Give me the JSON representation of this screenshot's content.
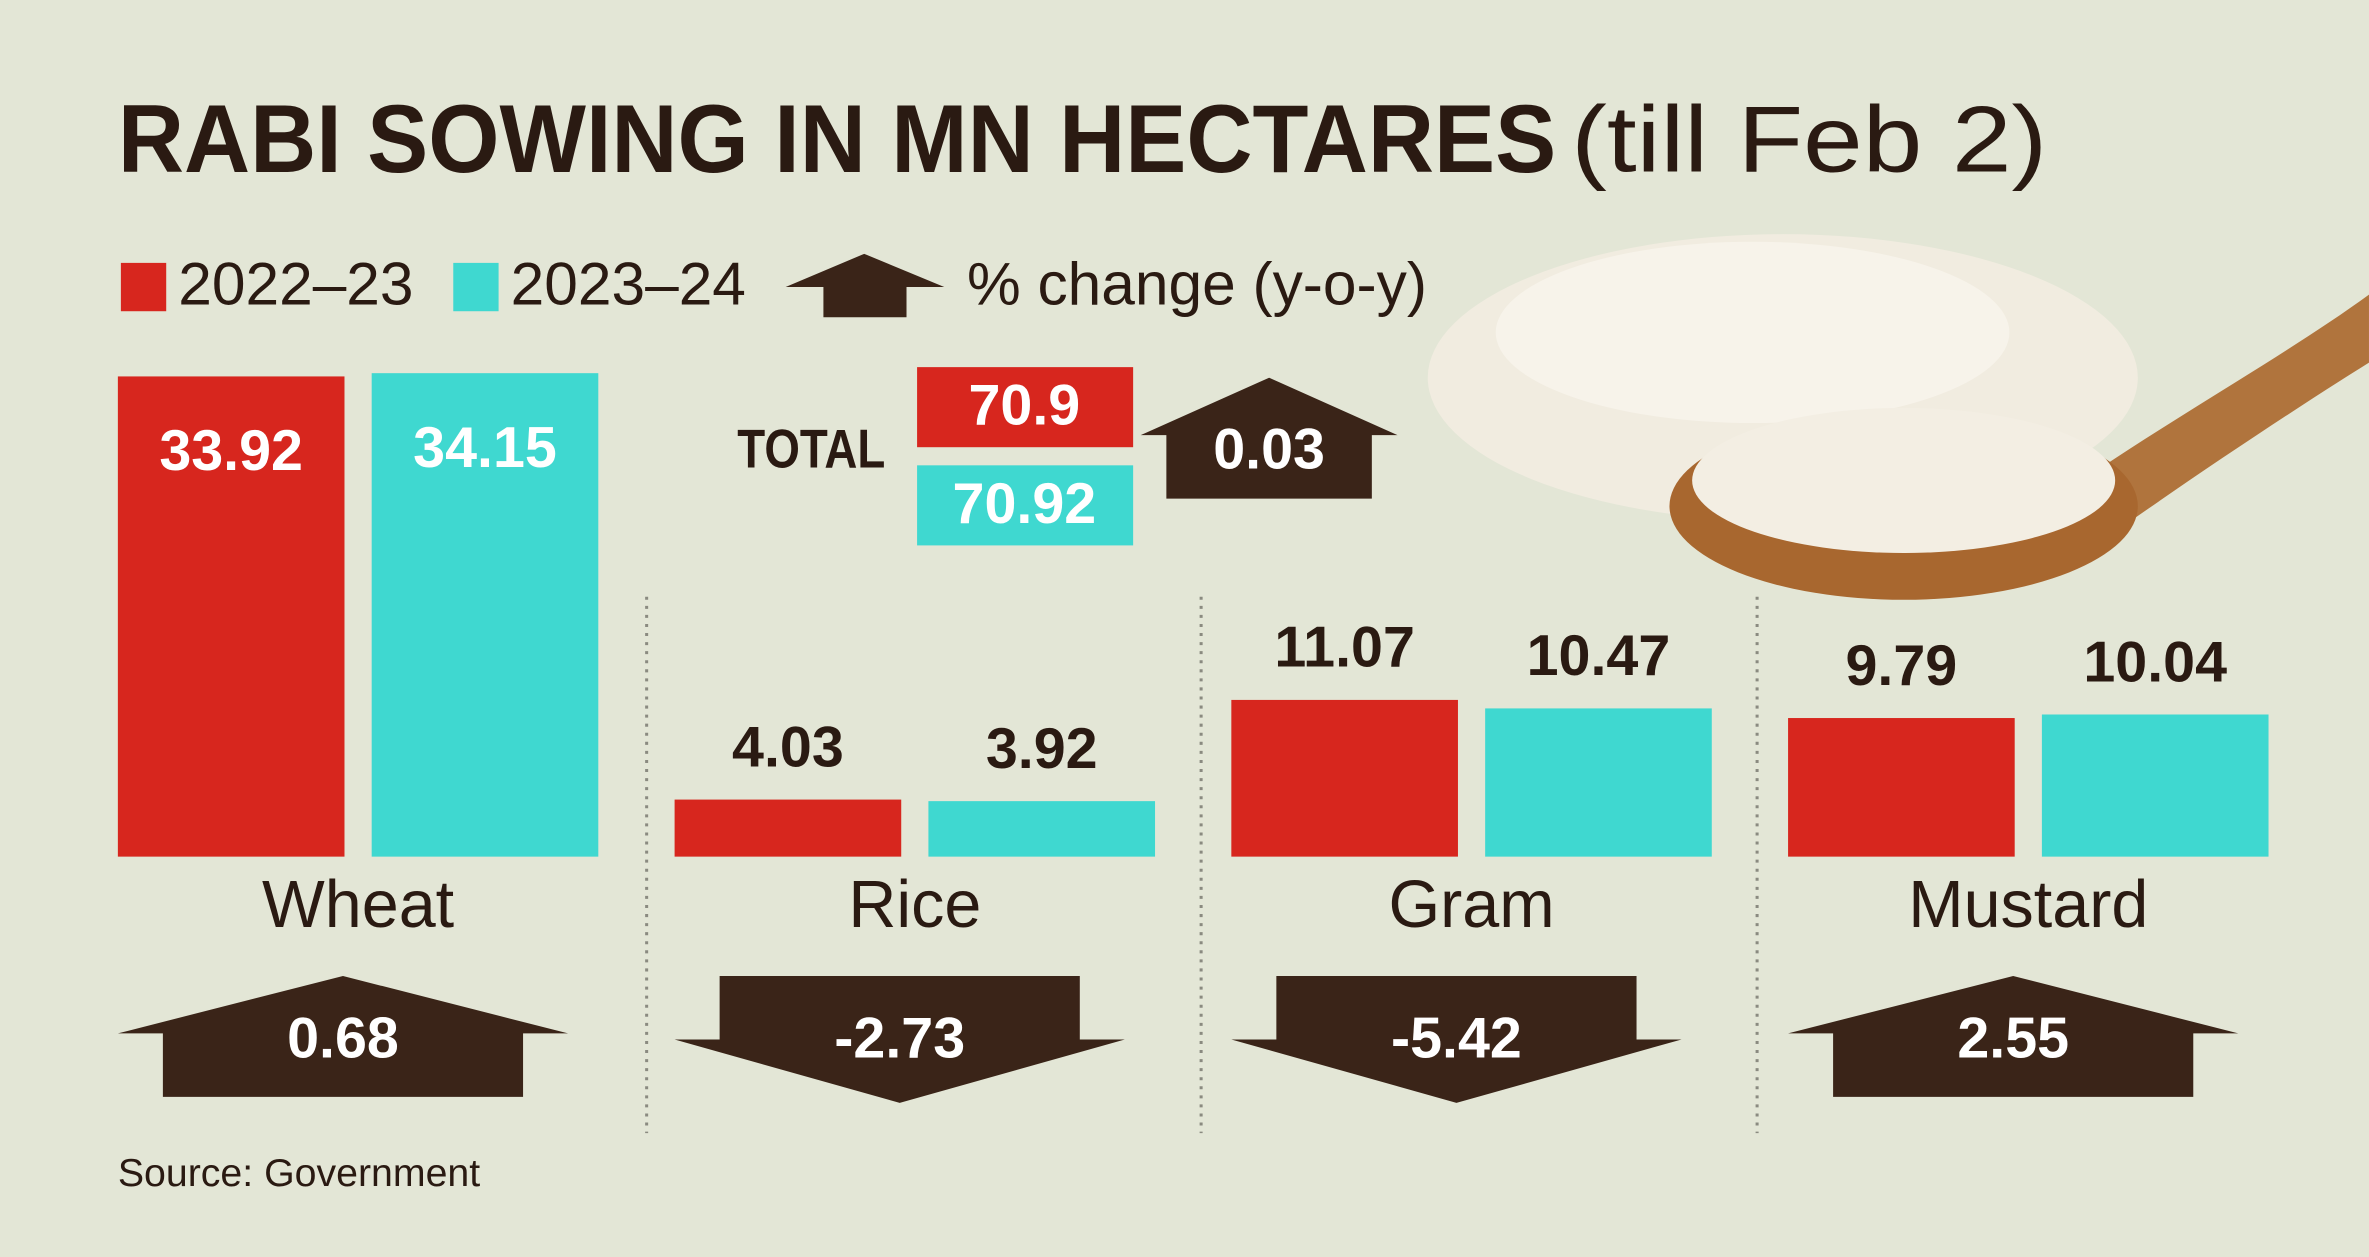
{
  "chart_data": {
    "type": "bar",
    "title": "RABI SOWING IN MN HECTARES",
    "subtitle": "(till Feb 2)",
    "categories": [
      "Wheat",
      "Rice",
      "Gram",
      "Mustard"
    ],
    "series": [
      {
        "name": "2022–23",
        "color": "#d7261e",
        "values": [
          33.92,
          4.03,
          11.07,
          9.79
        ]
      },
      {
        "name": "2023–24",
        "color": "#3fd8d0",
        "values": [
          34.15,
          3.92,
          10.47,
          10.04
        ]
      }
    ],
    "change": {
      "name": "% change (y-o-y)",
      "color": "#3a2418",
      "values": [
        0.68,
        -2.73,
        -5.42,
        2.55
      ]
    },
    "total": {
      "label": "TOTAL",
      "values": [
        70.9,
        70.92
      ],
      "change": 0.03
    },
    "source": "Source: Government"
  }
}
